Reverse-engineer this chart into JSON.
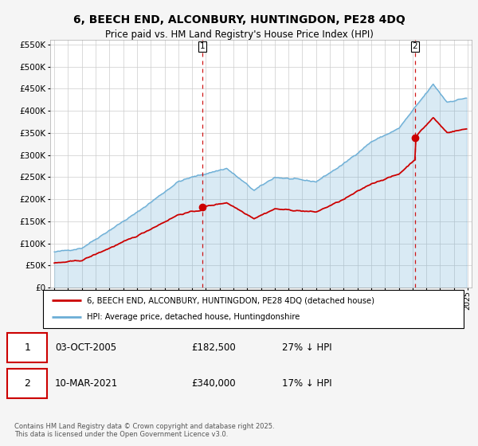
{
  "title": "6, BEECH END, ALCONBURY, HUNTINGDON, PE28 4DQ",
  "subtitle": "Price paid vs. HM Land Registry's House Price Index (HPI)",
  "legend_line1": "6, BEECH END, ALCONBURY, HUNTINGDON, PE28 4DQ (detached house)",
  "legend_line2": "HPI: Average price, detached house, Huntingdonshire",
  "sale1_date": "03-OCT-2005",
  "sale1_price": "£182,500",
  "sale1_note": "27% ↓ HPI",
  "sale2_date": "10-MAR-2021",
  "sale2_price": "£340,000",
  "sale2_note": "17% ↓ HPI",
  "footnote": "Contains HM Land Registry data © Crown copyright and database right 2025.\nThis data is licensed under the Open Government Licence v3.0.",
  "hpi_color": "#6baed6",
  "hpi_fill_color": "#d6eaf8",
  "price_color": "#cc0000",
  "vline_color": "#cc0000",
  "ylim": [
    0,
    560000
  ],
  "yticks": [
    0,
    50000,
    100000,
    150000,
    200000,
    250000,
    300000,
    350000,
    400000,
    450000,
    500000,
    550000
  ],
  "background_color": "#f5f5f5",
  "plot_bg_color": "#ffffff",
  "sale1_t": 2005.75,
  "sale1_p": 182500,
  "sale2_t": 2021.167,
  "sale2_p": 340000
}
